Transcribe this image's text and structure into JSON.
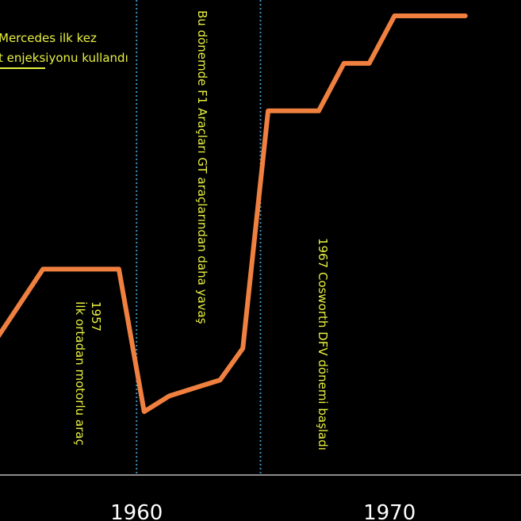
{
  "chart_data": {
    "type": "line",
    "x": [
      1953.8,
      1956.3,
      1959.3,
      1960.3,
      1961.3,
      1963.3,
      1964.2,
      1965.2,
      1967.2,
      1968.2,
      1969.2,
      1970.2,
      1972.3,
      1973.0
    ],
    "series": [
      {
        "values": [
          0.57,
          0.63,
          0.63,
          0.54,
          0.55,
          0.56,
          0.58,
          0.73,
          0.73,
          0.76,
          0.76,
          0.79,
          0.79,
          0.79
        ]
      }
    ],
    "x_ticks": [
      "1960",
      "1970"
    ],
    "x_tick_values": [
      1960,
      1970
    ],
    "xlim": [
      1954.6,
      1975.2
    ],
    "ylim": [
      0.5,
      0.8
    ],
    "grid": false,
    "vertical_lines": [
      1960,
      1964.9
    ],
    "annotations": {
      "mercedes_line1": "Mercedes ilk kez",
      "mercedes_line2": "t enjeksiyonu kullandı",
      "year_1957": "1957",
      "mid_engine": "İlk ortadan motorlu araç",
      "f1_slower": "Bu dönemde F1 Araçları GT araçlarından daha yavaş",
      "cosworth": "1967 Cosworth DFV dönemi başladı"
    },
    "colors": {
      "background": "#000000",
      "line": "#f08040",
      "guides": "#3a8fc0",
      "annotation_text": "#e8f040",
      "axis": "#bbbbbb",
      "tick_text": "#ffffff"
    }
  }
}
